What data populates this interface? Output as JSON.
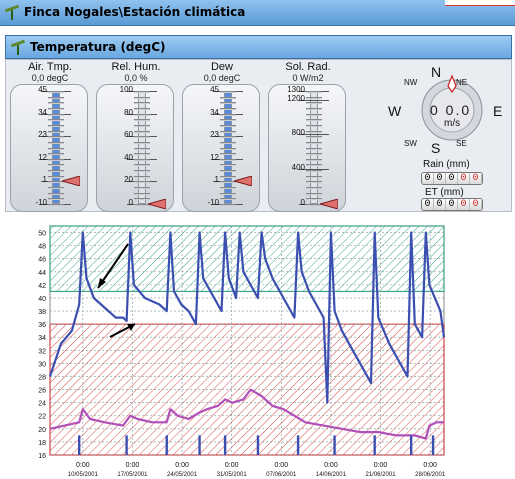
{
  "window": {
    "title": "Finca Nogales\\Estación climática"
  },
  "section": {
    "title": "Temperatura (degC)"
  },
  "gauges": [
    {
      "label": "Air. Tmp.",
      "value": "0,0 degC",
      "ticks": [
        "45",
        "34",
        "23",
        "12",
        "1",
        "-10"
      ],
      "min": -10,
      "max": 45,
      "level": 1,
      "fill": true
    },
    {
      "label": "Rel. Hum.",
      "value": "0,0 %",
      "ticks": [
        "100",
        "80",
        "60",
        "40",
        "20",
        "0"
      ],
      "min": 0,
      "max": 100,
      "level": 0,
      "fill": false
    },
    {
      "label": "Dew",
      "value": "0,0 degC",
      "ticks": [
        "45",
        "34",
        "23",
        "12",
        "1",
        "-10"
      ],
      "min": -10,
      "max": 45,
      "level": 1,
      "fill": true
    },
    {
      "label": "Sol. Rad.",
      "value": "0 W/m2",
      "ticks": [
        "1300",
        "1200",
        "800",
        "400",
        "0"
      ],
      "tickValues": [
        1300,
        1200,
        800,
        400,
        0
      ],
      "min": 0,
      "max": 1300,
      "level": 0,
      "fill": false
    }
  ],
  "wind": {
    "dirs": {
      "n": "N",
      "ne": "NE",
      "e": "E",
      "se": "SE",
      "s": "S",
      "sw": "SW",
      "w": "W",
      "nw": "NW"
    },
    "speed": "0 0.0",
    "unit": "m/s"
  },
  "rain": {
    "label": "Rain (mm)",
    "digits": [
      "0",
      "0",
      "0",
      "0",
      "0"
    ]
  },
  "et": {
    "label": "ET (mm)",
    "digits": [
      "0",
      "0",
      "0",
      "0",
      "0"
    ]
  },
  "colors": {
    "upper_band": "#2e9c7e",
    "lower_band": "#d33a3a",
    "temp_line": "#3b4fb0",
    "low_line": "#b04fb8",
    "accent": "#3a6ea5"
  },
  "chart_data": {
    "type": "line",
    "ylim": [
      16,
      51
    ],
    "yticks": [
      16,
      18,
      20,
      22,
      24,
      26,
      28,
      30,
      32,
      34,
      36,
      38,
      40,
      42,
      44,
      46,
      48,
      50
    ],
    "x": [
      "10/05/2001",
      "17/05/2001",
      "24/05/2001",
      "31/05/2001",
      "07/06/2001",
      "14/06/2001",
      "21/06/2001",
      "28/06/2001"
    ],
    "x_time_label": "0:00",
    "bands": [
      {
        "from": 41,
        "to": 51,
        "color": "#2e9c7e",
        "pattern": "hatch"
      },
      {
        "from": 16,
        "to": 36,
        "color": "#d33a3a",
        "pattern": "hatch"
      }
    ],
    "series": [
      {
        "color": "#3b4fb0",
        "points": [
          [
            0,
            28
          ],
          [
            3,
            33
          ],
          [
            6,
            35
          ],
          [
            8,
            39
          ],
          [
            9,
            50
          ],
          [
            10,
            43
          ],
          [
            12,
            40
          ],
          [
            14,
            39
          ],
          [
            16,
            38
          ],
          [
            18,
            37
          ],
          [
            20,
            37
          ],
          [
            21,
            36.5
          ],
          [
            22,
            50
          ],
          [
            23,
            42
          ],
          [
            26,
            40
          ],
          [
            30,
            39
          ],
          [
            32,
            38
          ],
          [
            33,
            50
          ],
          [
            34,
            41
          ],
          [
            36,
            39
          ],
          [
            38,
            38
          ],
          [
            40,
            36
          ],
          [
            41,
            50
          ],
          [
            42,
            43
          ],
          [
            45,
            40
          ],
          [
            47,
            38
          ],
          [
            48,
            50
          ],
          [
            49,
            43
          ],
          [
            51,
            40
          ],
          [
            52,
            50
          ],
          [
            53,
            44
          ],
          [
            55,
            42
          ],
          [
            57,
            40
          ],
          [
            58,
            50
          ],
          [
            59,
            46
          ],
          [
            61,
            43
          ],
          [
            63,
            41
          ],
          [
            65,
            39
          ],
          [
            67,
            37
          ],
          [
            68,
            50
          ],
          [
            69,
            44
          ],
          [
            71,
            41
          ],
          [
            73,
            39
          ],
          [
            75,
            37
          ],
          [
            76,
            24
          ],
          [
            77,
            50
          ],
          [
            78,
            38
          ],
          [
            80,
            35
          ],
          [
            82,
            33
          ],
          [
            85,
            30
          ],
          [
            88,
            27
          ],
          [
            89,
            50
          ],
          [
            90,
            37
          ],
          [
            93,
            33
          ],
          [
            96,
            30
          ],
          [
            98,
            28
          ],
          [
            99,
            50
          ],
          [
            100,
            36
          ],
          [
            102,
            34
          ],
          [
            103,
            50
          ],
          [
            104,
            42
          ],
          [
            107,
            38
          ],
          [
            108,
            34
          ]
        ]
      },
      {
        "color": "#b04fb8",
        "points": [
          [
            0,
            20
          ],
          [
            4,
            20.5
          ],
          [
            8,
            21
          ],
          [
            9,
            23
          ],
          [
            11,
            21.5
          ],
          [
            15,
            21
          ],
          [
            20,
            20.5
          ],
          [
            22,
            22
          ],
          [
            24,
            21.5
          ],
          [
            28,
            21
          ],
          [
            32,
            21
          ],
          [
            33,
            23
          ],
          [
            35,
            22
          ],
          [
            38,
            21.5
          ],
          [
            41,
            22.5
          ],
          [
            43,
            23
          ],
          [
            46,
            23.5
          ],
          [
            48,
            24.5
          ],
          [
            50,
            24
          ],
          [
            53,
            24.5
          ],
          [
            55,
            26
          ],
          [
            58,
            25
          ],
          [
            61,
            23.5
          ],
          [
            64,
            23
          ],
          [
            67,
            22
          ],
          [
            70,
            21
          ],
          [
            75,
            20.5
          ],
          [
            80,
            20
          ],
          [
            85,
            19.5
          ],
          [
            90,
            19.5
          ],
          [
            95,
            19
          ],
          [
            100,
            19
          ],
          [
            103,
            18.5
          ],
          [
            104,
            20.5
          ],
          [
            106,
            21
          ],
          [
            108,
            21
          ]
        ]
      }
    ],
    "event_markers": [
      8,
      21,
      32,
      41,
      48,
      57,
      68,
      78,
      89,
      99,
      105
    ],
    "x_domain": [
      0,
      108
    ]
  }
}
